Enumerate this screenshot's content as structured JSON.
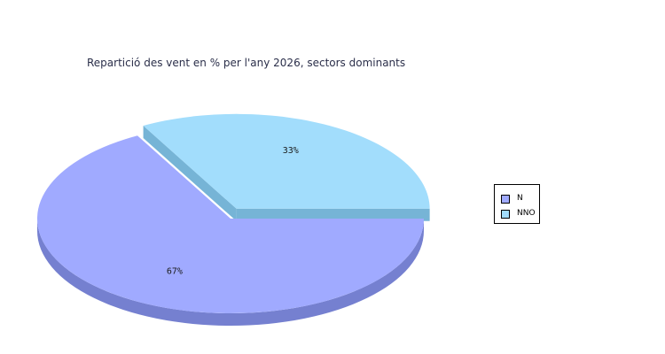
{
  "chart_data": {
    "type": "pie",
    "title": "Repartició des vent en % per l'any 2026, sectors dominants",
    "slices": [
      {
        "name": "N",
        "value": 67,
        "label": "67%",
        "color": "#a0aaff",
        "side_color": "#7580d0",
        "exploded": false
      },
      {
        "name": "NNO",
        "value": 33,
        "label": "33%",
        "color": "#a2ddfc",
        "side_color": "#76b4d6",
        "exploded": true
      }
    ],
    "legend_placement": "right"
  }
}
